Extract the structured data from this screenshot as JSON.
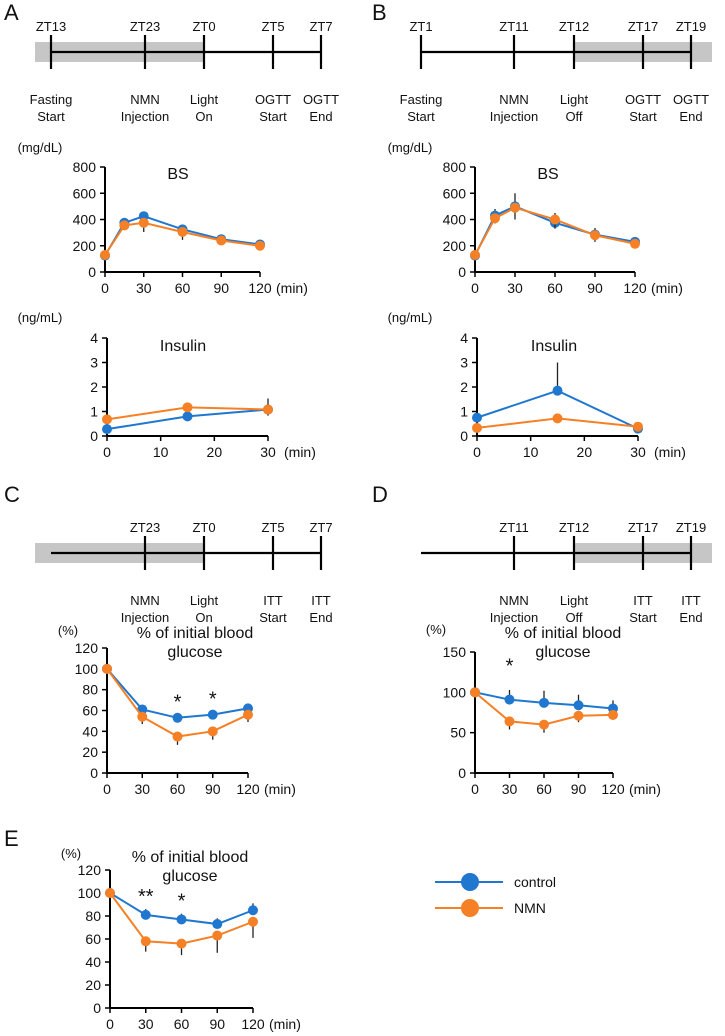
{
  "legend": {
    "items": [
      {
        "label": "control",
        "color": "#1f77d0"
      },
      {
        "label": "NMN",
        "color": "#f58025"
      }
    ]
  },
  "timelines": [
    {
      "panel": "A",
      "dark_from": "ZT13",
      "dark_to": "ZT0",
      "ticks": [
        {
          "top": "ZT13",
          "bottom1": "Fasting",
          "bottom2": "Start"
        },
        {
          "top": "ZT23",
          "bottom1": "NMN",
          "bottom2": "Injection"
        },
        {
          "top": "ZT0",
          "bottom1": "Light",
          "bottom2": "On"
        },
        {
          "top": "ZT5",
          "bottom1": "OGTT",
          "bottom2": "Start"
        },
        {
          "top": "ZT7",
          "bottom1": "OGTT",
          "bottom2": "End"
        }
      ]
    },
    {
      "panel": "B",
      "dark_from": "ZT12",
      "dark_to": "end",
      "ticks": [
        {
          "top": "ZT1",
          "bottom1": "Fasting",
          "bottom2": "Start"
        },
        {
          "top": "ZT11",
          "bottom1": "NMN",
          "bottom2": "Injection"
        },
        {
          "top": "ZT12",
          "bottom1": "Light",
          "bottom2": "Off"
        },
        {
          "top": "ZT17",
          "bottom1": "OGTT",
          "bottom2": "Start"
        },
        {
          "top": "ZT19",
          "bottom1": "OGTT",
          "bottom2": "End"
        }
      ]
    },
    {
      "panel": "C",
      "dark_from": "start",
      "dark_to": "ZT0",
      "ticks": [
        {
          "top": "ZT23",
          "bottom1": "NMN",
          "bottom2": "Injection"
        },
        {
          "top": "ZT0",
          "bottom1": "Light",
          "bottom2": "On"
        },
        {
          "top": "ZT5",
          "bottom1": "ITT",
          "bottom2": "Start"
        },
        {
          "top": "ZT7",
          "bottom1": "ITT",
          "bottom2": "End"
        }
      ]
    },
    {
      "panel": "D",
      "dark_from": "ZT12",
      "dark_to": "end",
      "ticks": [
        {
          "top": "ZT11",
          "bottom1": "NMN",
          "bottom2": "Injection"
        },
        {
          "top": "ZT12",
          "bottom1": "Light",
          "bottom2": "Off"
        },
        {
          "top": "ZT17",
          "bottom1": "ITT",
          "bottom2": "Start"
        },
        {
          "top": "ZT19",
          "bottom1": "ITT",
          "bottom2": "End"
        }
      ]
    }
  ],
  "chart_data": [
    {
      "panel": "A",
      "id": "A-bs",
      "type": "line",
      "title": "BS",
      "ylabel": "(mg/dL)",
      "xlabel": "(min)",
      "x": [
        0,
        15,
        30,
        60,
        90,
        120
      ],
      "xticks": [
        0,
        30,
        60,
        90,
        120
      ],
      "yticks": [
        0,
        200,
        400,
        600,
        800
      ],
      "xlim": [
        0,
        120
      ],
      "ylim": [
        0,
        800
      ],
      "series": [
        {
          "name": "control",
          "values": [
            125,
            375,
            425,
            325,
            250,
            210
          ],
          "errors": [
            10,
            15,
            20,
            15,
            10,
            10
          ]
        },
        {
          "name": "NMN",
          "values": [
            130,
            355,
            375,
            305,
            240,
            200
          ],
          "errors": [
            10,
            20,
            70,
            60,
            20,
            10
          ]
        }
      ],
      "annotations": []
    },
    {
      "panel": "A",
      "id": "A-ins",
      "type": "line",
      "title": "Insulin",
      "ylabel": "(ng/mL)",
      "xlabel": "(min)",
      "x": [
        0,
        15,
        30
      ],
      "xticks": [
        0,
        10,
        20,
        30
      ],
      "yticks": [
        0,
        1,
        2,
        3,
        4
      ],
      "xlim": [
        0,
        30
      ],
      "ylim": [
        0,
        4
      ],
      "series": [
        {
          "name": "control",
          "values": [
            0.28,
            0.8,
            1.08
          ],
          "errors": [
            0.05,
            0.45,
            0.45
          ]
        },
        {
          "name": "NMN",
          "values": [
            0.68,
            1.17,
            1.08
          ],
          "errors": [
            0.05,
            0.2,
            0.25
          ]
        }
      ],
      "annotations": []
    },
    {
      "panel": "B",
      "id": "B-bs",
      "type": "line",
      "title": "BS",
      "ylabel": "(mg/dL)",
      "xlabel": "(min)",
      "x": [
        0,
        15,
        30,
        60,
        90,
        120
      ],
      "xticks": [
        0,
        30,
        60,
        90,
        120
      ],
      "yticks": [
        0,
        200,
        400,
        600,
        800
      ],
      "xlim": [
        0,
        120
      ],
      "ylim": [
        0,
        800
      ],
      "series": [
        {
          "name": "control",
          "values": [
            125,
            430,
            500,
            375,
            285,
            230
          ],
          "errors": [
            10,
            50,
            100,
            75,
            50,
            20
          ]
        },
        {
          "name": "NMN",
          "values": [
            130,
            410,
            490,
            400,
            280,
            215
          ],
          "errors": [
            10,
            40,
            90,
            70,
            50,
            20
          ]
        }
      ],
      "annotations": []
    },
    {
      "panel": "B",
      "id": "B-ins",
      "type": "line",
      "title": "Insulin",
      "ylabel": "(ng/mL)",
      "xlabel": "(min)",
      "x": [
        0,
        15,
        30
      ],
      "xticks": [
        0,
        10,
        20,
        30
      ],
      "yticks": [
        0,
        1,
        2,
        3,
        4
      ],
      "xlim": [
        0,
        30
      ],
      "ylim": [
        0,
        4
      ],
      "series": [
        {
          "name": "control",
          "values": [
            0.75,
            1.85,
            0.3
          ],
          "errors": [
            0.1,
            1.15,
            0.05
          ]
        },
        {
          "name": "NMN",
          "values": [
            0.33,
            0.72,
            0.38
          ],
          "errors": [
            0.05,
            0.08,
            0.05
          ]
        }
      ],
      "annotations": []
    },
    {
      "panel": "C",
      "id": "C-itt",
      "type": "line",
      "title_line1": "% of initial blood",
      "title_line2": "glucose",
      "ylabel": "(%)",
      "xlabel": "(min)",
      "x": [
        0,
        30,
        60,
        90,
        120
      ],
      "xticks": [
        0,
        30,
        60,
        90,
        120
      ],
      "yticks": [
        0,
        20,
        40,
        60,
        80,
        100,
        120
      ],
      "xlim": [
        0,
        120
      ],
      "ylim": [
        0,
        120
      ],
      "series": [
        {
          "name": "control",
          "values": [
            100,
            61,
            53,
            56,
            62
          ],
          "errors": [
            0,
            3,
            3,
            3,
            3
          ]
        },
        {
          "name": "NMN",
          "values": [
            100,
            54,
            35,
            40,
            56
          ],
          "errors": [
            0,
            7,
            8,
            8,
            7
          ]
        }
      ],
      "annotations": [
        {
          "x": 60,
          "text": "*"
        },
        {
          "x": 90,
          "text": "*"
        }
      ]
    },
    {
      "panel": "D",
      "id": "D-itt",
      "type": "line",
      "title_line1": "% of initial blood",
      "title_line2": "glucose",
      "ylabel": "(%)",
      "xlabel": "(min)",
      "x": [
        0,
        30,
        60,
        90,
        120
      ],
      "xticks": [
        0,
        30,
        60,
        90,
        120
      ],
      "yticks": [
        0,
        50,
        100,
        150
      ],
      "xlim": [
        0,
        120
      ],
      "ylim": [
        0,
        150
      ],
      "series": [
        {
          "name": "control",
          "values": [
            100,
            91,
            87,
            84,
            80
          ],
          "errors": [
            0,
            12,
            15,
            13,
            10
          ]
        },
        {
          "name": "NMN",
          "values": [
            100,
            64,
            60,
            71,
            72
          ],
          "errors": [
            0,
            10,
            10,
            8,
            6
          ]
        }
      ],
      "annotations": [
        {
          "x": 30,
          "text": "*"
        }
      ]
    },
    {
      "panel": "E",
      "id": "E-itt",
      "type": "line",
      "title_line1": "% of initial blood",
      "title_line2": "glucose",
      "ylabel": "(%)",
      "xlabel": "(min)",
      "x": [
        0,
        30,
        60,
        90,
        120
      ],
      "xticks": [
        0,
        30,
        60,
        90,
        120
      ],
      "yticks": [
        0,
        20,
        40,
        60,
        80,
        100,
        120
      ],
      "xlim": [
        0,
        120
      ],
      "ylim": [
        0,
        120
      ],
      "series": [
        {
          "name": "control",
          "values": [
            100,
            81,
            77,
            73,
            85
          ],
          "errors": [
            0,
            5,
            5,
            5,
            6
          ]
        },
        {
          "name": "NMN",
          "values": [
            100,
            58,
            56,
            63,
            75
          ],
          "errors": [
            0,
            9,
            10,
            15,
            14
          ]
        }
      ],
      "annotations": [
        {
          "x": 30,
          "text": "**"
        },
        {
          "x": 60,
          "text": "*"
        }
      ]
    }
  ]
}
